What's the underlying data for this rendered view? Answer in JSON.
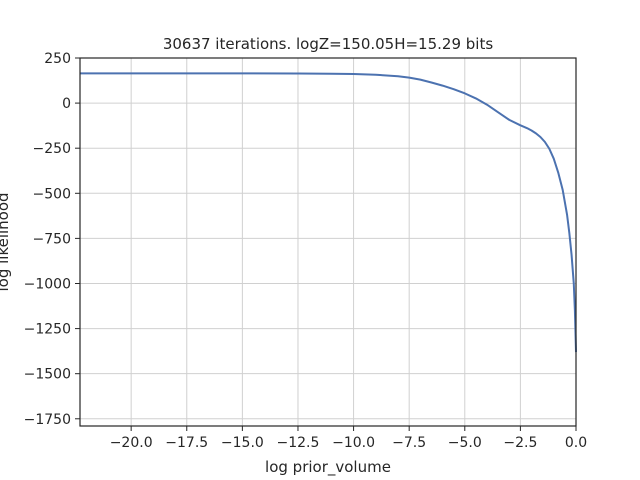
{
  "chart_data": {
    "type": "line",
    "title": "30637 iterations. logZ=150.05H=15.29 bits",
    "xlabel": "log prior_volume",
    "ylabel": "log likelihood",
    "xlim": [
      -22.3,
      0.0
    ],
    "ylim": [
      -1790,
      250
    ],
    "xticks": [
      -20.0,
      -17.5,
      -15.0,
      -12.5,
      -10.0,
      -7.5,
      -5.0,
      -2.5,
      0.0
    ],
    "xtick_labels": [
      "−20.0",
      "−17.5",
      "−15.0",
      "−12.5",
      "−10.0",
      "−7.5",
      "−5.0",
      "−2.5",
      "0.0"
    ],
    "yticks": [
      250,
      0,
      -250,
      -500,
      -750,
      -1000,
      -1250,
      -1500,
      -1750
    ],
    "ytick_labels": [
      "250",
      "0",
      "−250",
      "−500",
      "−750",
      "−1000",
      "−1250",
      "−1500",
      "−1750"
    ],
    "grid": true,
    "line_color": "#4c72b0",
    "series": [
      {
        "x": [
          -22.3,
          -20,
          -17.5,
          -15,
          -12.5,
          -11,
          -10,
          -9,
          -8,
          -7.5,
          -7,
          -6.5,
          -6,
          -5.5,
          -5,
          -4.5,
          -4,
          -3.5,
          -3,
          -2.5,
          -2.2,
          -2.0,
          -1.8,
          -1.6,
          -1.4,
          -1.2,
          -1.0,
          -0.8,
          -0.6,
          -0.4,
          -0.3,
          -0.2,
          -0.1,
          -0.05,
          0.0
        ],
        "y": [
          165,
          165,
          165,
          165,
          164,
          163,
          161,
          157,
          149,
          141,
          130,
          114,
          97,
          77,
          54,
          26,
          -9,
          -51,
          -93,
          -123,
          -139,
          -152,
          -168,
          -188,
          -215,
          -253,
          -308,
          -385,
          -480,
          -620,
          -720,
          -840,
          -1000,
          -1150,
          -1380
        ]
      }
    ]
  }
}
